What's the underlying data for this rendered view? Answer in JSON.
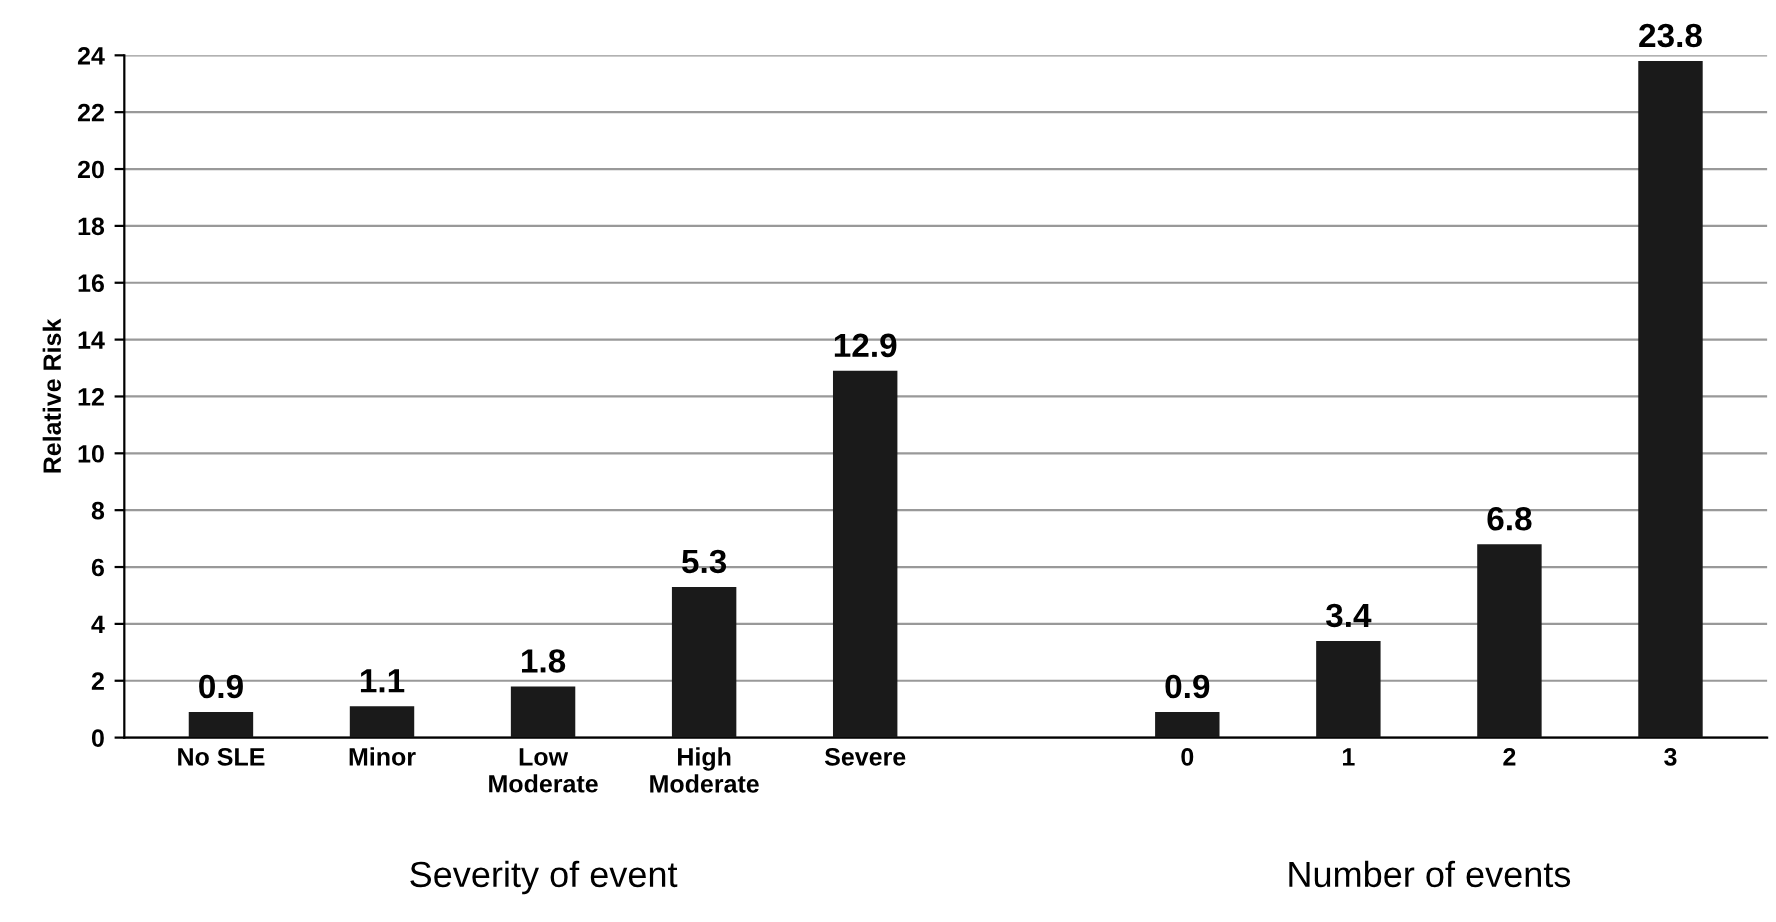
{
  "chart_data": {
    "type": "bar",
    "ylabel": "Relative Risk",
    "categories": [
      "No SLE",
      "Minor",
      "Low\nModerate",
      "High\nModerate",
      "Severe",
      null,
      "0",
      "1",
      "2",
      "3"
    ],
    "values": [
      0.9,
      1.1,
      1.8,
      5.3,
      12.9,
      null,
      0.9,
      3.4,
      6.8,
      23.8
    ],
    "color": "#1a1a1a",
    "ylim": [
      0,
      24
    ],
    "yticks": [
      0,
      2,
      4,
      6,
      8,
      10,
      12,
      14,
      16,
      18,
      20,
      22,
      24
    ],
    "grid": "y",
    "data_labels": true,
    "annotations": [
      "Severity of event",
      "Number of events"
    ]
  }
}
